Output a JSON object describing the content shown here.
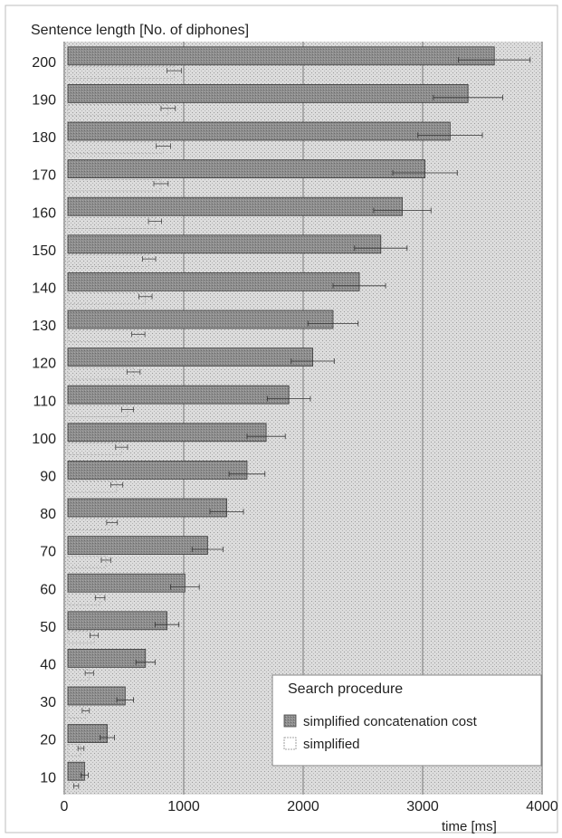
{
  "chart_data": {
    "type": "bar",
    "orientation": "horizontal",
    "ylabel": "Sentence length [No. of diphones]",
    "xlabel": "time [ms]",
    "xlim": [
      0,
      4000
    ],
    "xticks": [
      0,
      1000,
      2000,
      3000,
      4000
    ],
    "categories": [
      "10",
      "20",
      "30",
      "40",
      "50",
      "60",
      "70",
      "80",
      "90",
      "100",
      "110",
      "120",
      "130",
      "140",
      "150",
      "160",
      "170",
      "180",
      "190",
      "200"
    ],
    "series": [
      {
        "name": "simplified concatenation cost",
        "color": "#8a8a8a",
        "values": [
          170,
          360,
          510,
          680,
          860,
          1010,
          1200,
          1360,
          1530,
          1690,
          1880,
          2080,
          2250,
          2470,
          2650,
          2830,
          3020,
          3230,
          3380,
          3600
        ],
        "errors": [
          30,
          60,
          70,
          80,
          100,
          120,
          130,
          140,
          150,
          160,
          180,
          180,
          210,
          220,
          220,
          240,
          270,
          270,
          290,
          300
        ]
      },
      {
        "name": "simplified",
        "color": "#ffffff",
        "values": [
          100,
          140,
          180,
          210,
          250,
          300,
          350,
          400,
          440,
          480,
          530,
          580,
          620,
          680,
          710,
          760,
          810,
          830,
          870,
          920
        ],
        "errors": [
          20,
          25,
          30,
          35,
          35,
          40,
          40,
          45,
          50,
          50,
          50,
          55,
          55,
          55,
          55,
          55,
          60,
          60,
          60,
          60
        ]
      }
    ],
    "legend": {
      "title": "Search procedure",
      "placement": "bottom-right"
    },
    "grid": "vertical"
  }
}
